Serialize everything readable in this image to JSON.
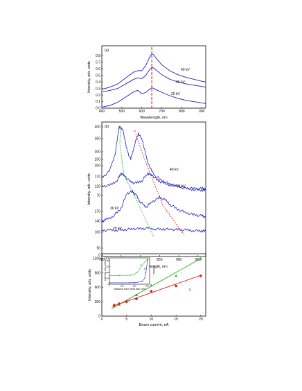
{
  "chart_data": [
    {
      "type": "line",
      "panel_label": "(a)",
      "xlabel": "Wavelength, nm",
      "ylabel": "Intensity, arb. units",
      "xlim": [
        400,
        920
      ],
      "ylim": [
        0.0,
        0.95
      ],
      "xticks": [
        400,
        500,
        600,
        700,
        800,
        900
      ],
      "yticks": [
        0.0,
        0.1,
        0.2,
        0.3,
        0.4,
        0.5,
        0.6,
        0.7,
        0.8
      ],
      "line_color": "#1c1cc8",
      "marker_line": {
        "x": 650,
        "color": "#e01c1c",
        "style": "dashed"
      },
      "series": [
        {
          "name": "20 kV",
          "x": [
            405,
            440,
            480,
            520,
            560,
            580,
            600,
            620,
            640,
            650,
            660,
            680,
            700,
            740,
            780,
            820,
            860,
            900,
            918
          ],
          "y": [
            0.02,
            0.04,
            0.09,
            0.17,
            0.25,
            0.27,
            0.22,
            0.24,
            0.29,
            0.31,
            0.3,
            0.27,
            0.24,
            0.19,
            0.15,
            0.12,
            0.1,
            0.08,
            0.07
          ]
        },
        {
          "name": "30 kV",
          "x": [
            405,
            440,
            480,
            520,
            560,
            580,
            600,
            620,
            640,
            650,
            660,
            680,
            700,
            740,
            780,
            820,
            860,
            900,
            918
          ],
          "y": [
            0.25,
            0.27,
            0.3,
            0.37,
            0.44,
            0.46,
            0.45,
            0.5,
            0.59,
            0.62,
            0.61,
            0.56,
            0.51,
            0.44,
            0.4,
            0.37,
            0.35,
            0.33,
            0.32
          ]
        },
        {
          "name": "40 kV",
          "x": [
            405,
            440,
            480,
            520,
            560,
            580,
            600,
            620,
            640,
            650,
            660,
            680,
            700,
            740,
            780,
            820,
            860,
            900,
            918
          ],
          "y": [
            0.29,
            0.32,
            0.37,
            0.46,
            0.55,
            0.57,
            0.57,
            0.65,
            0.78,
            0.83,
            0.81,
            0.73,
            0.66,
            0.57,
            0.51,
            0.47,
            0.44,
            0.41,
            0.4
          ]
        }
      ]
    },
    {
      "type": "line",
      "panel_label": "(b)",
      "xlabel": "Wavelength, nm",
      "ylabel": "Intensity, arb. units",
      "xlim": [
        700,
        970
      ],
      "xticks": [
        700,
        750,
        800,
        850,
        900,
        950
      ],
      "yticks": [
        0,
        50,
        100,
        150,
        200,
        250,
        300,
        350,
        400
      ],
      "line_color": "#1c1cc8",
      "y_segments": [
        {
          "range": [
            0,
            170
          ],
          "ticks": [
            0,
            50,
            100,
            140,
            170
          ]
        },
        {
          "range": [
            70,
            170
          ],
          "ticks": [
            70,
            120,
            170
          ]
        },
        {
          "range": [
            200,
            410
          ],
          "ticks": [
            200,
            250,
            300,
            350,
            400
          ]
        }
      ],
      "series": [
        {
          "name": "20 kV",
          "x": [
            700,
            720,
            740,
            760,
            780,
            800,
            820,
            840,
            860,
            880,
            900,
            920,
            940,
            960,
            970
          ],
          "y": [
            60,
            62,
            63,
            66,
            72,
            72,
            74,
            71,
            70,
            68,
            66,
            63,
            60,
            58,
            58
          ]
        },
        {
          "name": "30 kV",
          "x": [
            700,
            710,
            730,
            750,
            765,
            780,
            790,
            800,
            815,
            830,
            850,
            865,
            880,
            900,
            920,
            940,
            960,
            970
          ],
          "y": [
            78,
            82,
            92,
            112,
            150,
            155,
            145,
            128,
            115,
            128,
            140,
            133,
            120,
            108,
            100,
            95,
            92,
            90
          ]
        },
        {
          "name": "35 kV",
          "x": [
            700,
            720,
            740,
            750,
            760,
            775,
            790,
            805,
            820,
            830,
            845,
            860,
            880,
            900,
            920,
            940,
            960,
            970
          ],
          "y": [
            108,
            110,
            128,
            152,
            142,
            122,
            118,
            128,
            152,
            145,
            128,
            118,
            112,
            108,
            102,
            100,
            100,
            100
          ]
        },
        {
          "name": "40 kV",
          "x": [
            700,
            720,
            735,
            745,
            755,
            765,
            775,
            785,
            795,
            805,
            815,
            825,
            840,
            860,
            880,
            900,
            920,
            940,
            960,
            970
          ],
          "y": [
            245,
            265,
            320,
            400,
            390,
            330,
            300,
            345,
            380,
            360,
            310,
            275,
            250,
            235,
            225,
            218,
            212,
            210,
            208,
            208
          ]
        }
      ],
      "annotations": [
        {
          "text": "I",
          "color": "#28b428"
        },
        {
          "text": "II",
          "color": "#e01c1c"
        }
      ]
    },
    {
      "type": "scatter",
      "panel_label": "(c)",
      "xlabel": "Beam current, nA",
      "ylabel": "Intensity, arb. units",
      "xlim": [
        0,
        21
      ],
      "ylim": [
        0,
        1300
      ],
      "xticks": [
        0,
        5,
        10,
        15,
        20
      ],
      "yticks": [
        0,
        300,
        600,
        900,
        1200
      ],
      "series": [
        {
          "name": "I",
          "color": "#28b428",
          "marker": "triangle",
          "x": [
            2.5,
            3.5,
            5,
            7,
            10,
            15,
            20
          ],
          "y": [
            200,
            240,
            320,
            440,
            640,
            840,
            1200
          ]
        },
        {
          "name": "II",
          "color": "#e01c1c",
          "marker": "circle",
          "x": [
            2.5,
            3.5,
            5,
            7,
            10,
            15,
            20
          ],
          "y": [
            230,
            260,
            300,
            360,
            520,
            630,
            840
          ]
        }
      ],
      "fits": [
        {
          "series": "I",
          "x": [
            2,
            20
          ],
          "y": [
            160,
            1200
          ]
        },
        {
          "series": "II",
          "x": [
            2,
            20
          ],
          "y": [
            200,
            850
          ]
        }
      ],
      "inset": {
        "xlabel": "Distance from weld axis, mm",
        "ylabel": "Intensity, arb. units",
        "right_label": "Relative ...",
        "xticks": [
          0,
          100,
          200,
          300
        ],
        "yticks": [
          0,
          40,
          80,
          120,
          160
        ],
        "series": [
          {
            "name": "I",
            "color": "#28b428",
            "x": [
              0,
              40,
              80,
              120,
              160,
              200,
              220,
              240,
              260,
              280,
              300
            ],
            "y": [
              60,
              60,
              60,
              61,
              62,
              68,
              80,
              105,
              130,
              150,
              165
            ]
          },
          {
            "name": "II",
            "color": "#1c1cc8",
            "x": [
              0,
              80,
              160,
              220,
              260,
              280,
              290,
              300,
              305
            ],
            "y": [
              10,
              10,
              10,
              12,
              20,
              40,
              80,
              140,
              170
            ]
          }
        ],
        "labels": [
          "I",
          "II"
        ]
      }
    }
  ]
}
